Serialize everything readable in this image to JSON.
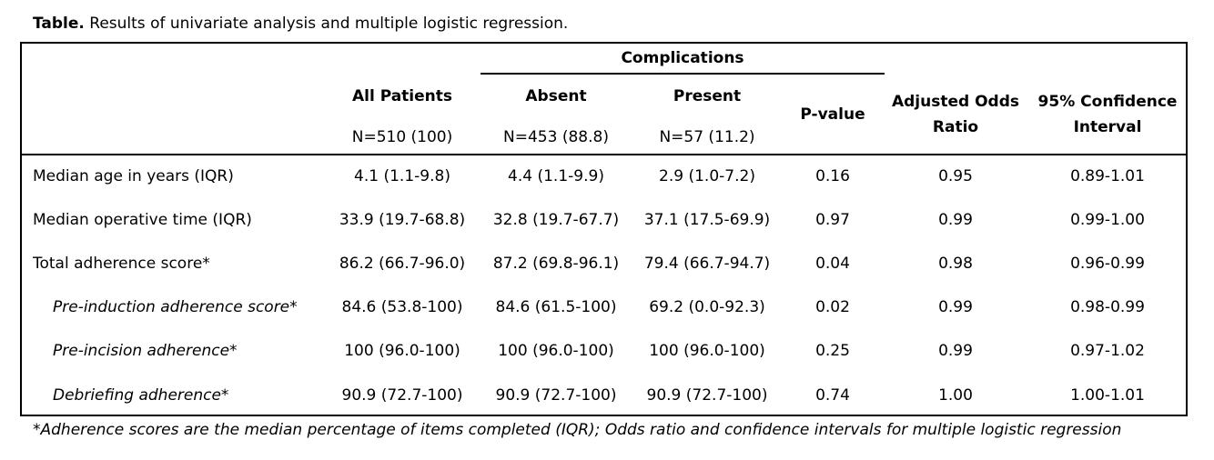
{
  "caption": {
    "bold": "Table.",
    "text": " Results of univariate analysis and multiple logistic regression."
  },
  "header": {
    "complications": "Complications",
    "all_patients": "All Patients",
    "all_patients_n": "N=510 (100)",
    "absent": "Absent",
    "absent_n": "N=453 (88.8)",
    "present": "Present",
    "present_n": "N=57 (11.2)",
    "p_value": "P-value",
    "aor_line1": "Adjusted Odds",
    "aor_line2": "Ratio",
    "ci_line1": "95% Confidence",
    "ci_line2": "Interval"
  },
  "rows": [
    {
      "label": "Median age in years (IQR)",
      "all": "4.1 (1.1-9.8)",
      "absent": "4.4 (1.1-9.9)",
      "present": "2.9 (1.0-7.2)",
      "p": "0.16",
      "aor": "0.95",
      "ci": "0.89-1.01"
    },
    {
      "label": "Median operative time (IQR)",
      "all": "33.9 (19.7-68.8)",
      "absent": "32.8 (19.7-67.7)",
      "present": "37.1 (17.5-69.9)",
      "p": "0.97",
      "aor": "0.99",
      "ci": "0.99-1.00"
    },
    {
      "label": "Total adherence score*",
      "all": "86.2 (66.7-96.0)",
      "absent": "87.2 (69.8-96.1)",
      "present": "79.4 (66.7-94.7)",
      "p": "0.04",
      "aor": "0.98",
      "ci": "0.96-0.99"
    },
    {
      "label": "Pre-induction adherence score*",
      "all": "84.6 (53.8-100)",
      "absent": "84.6 (61.5-100)",
      "present": "69.2 (0.0-92.3)",
      "p": "0.02",
      "aor": "0.99",
      "ci": "0.98-0.99"
    },
    {
      "label": "Pre-incision adherence*",
      "all": "100 (96.0-100)",
      "absent": "100 (96.0-100)",
      "present": "100 (96.0-100)",
      "p": "0.25",
      "aor": "0.99",
      "ci": "0.97-1.02"
    },
    {
      "label": "Debriefing adherence*",
      "all": "90.9 (72.7-100)",
      "absent": "90.9 (72.7-100)",
      "present": "90.9 (72.7-100)",
      "p": "0.74",
      "aor": "1.00",
      "ci": "1.00-1.01"
    }
  ],
  "footnote": "*Adherence scores are the median percentage of items completed (IQR); Odds ratio and confidence intervals for multiple logistic regression"
}
